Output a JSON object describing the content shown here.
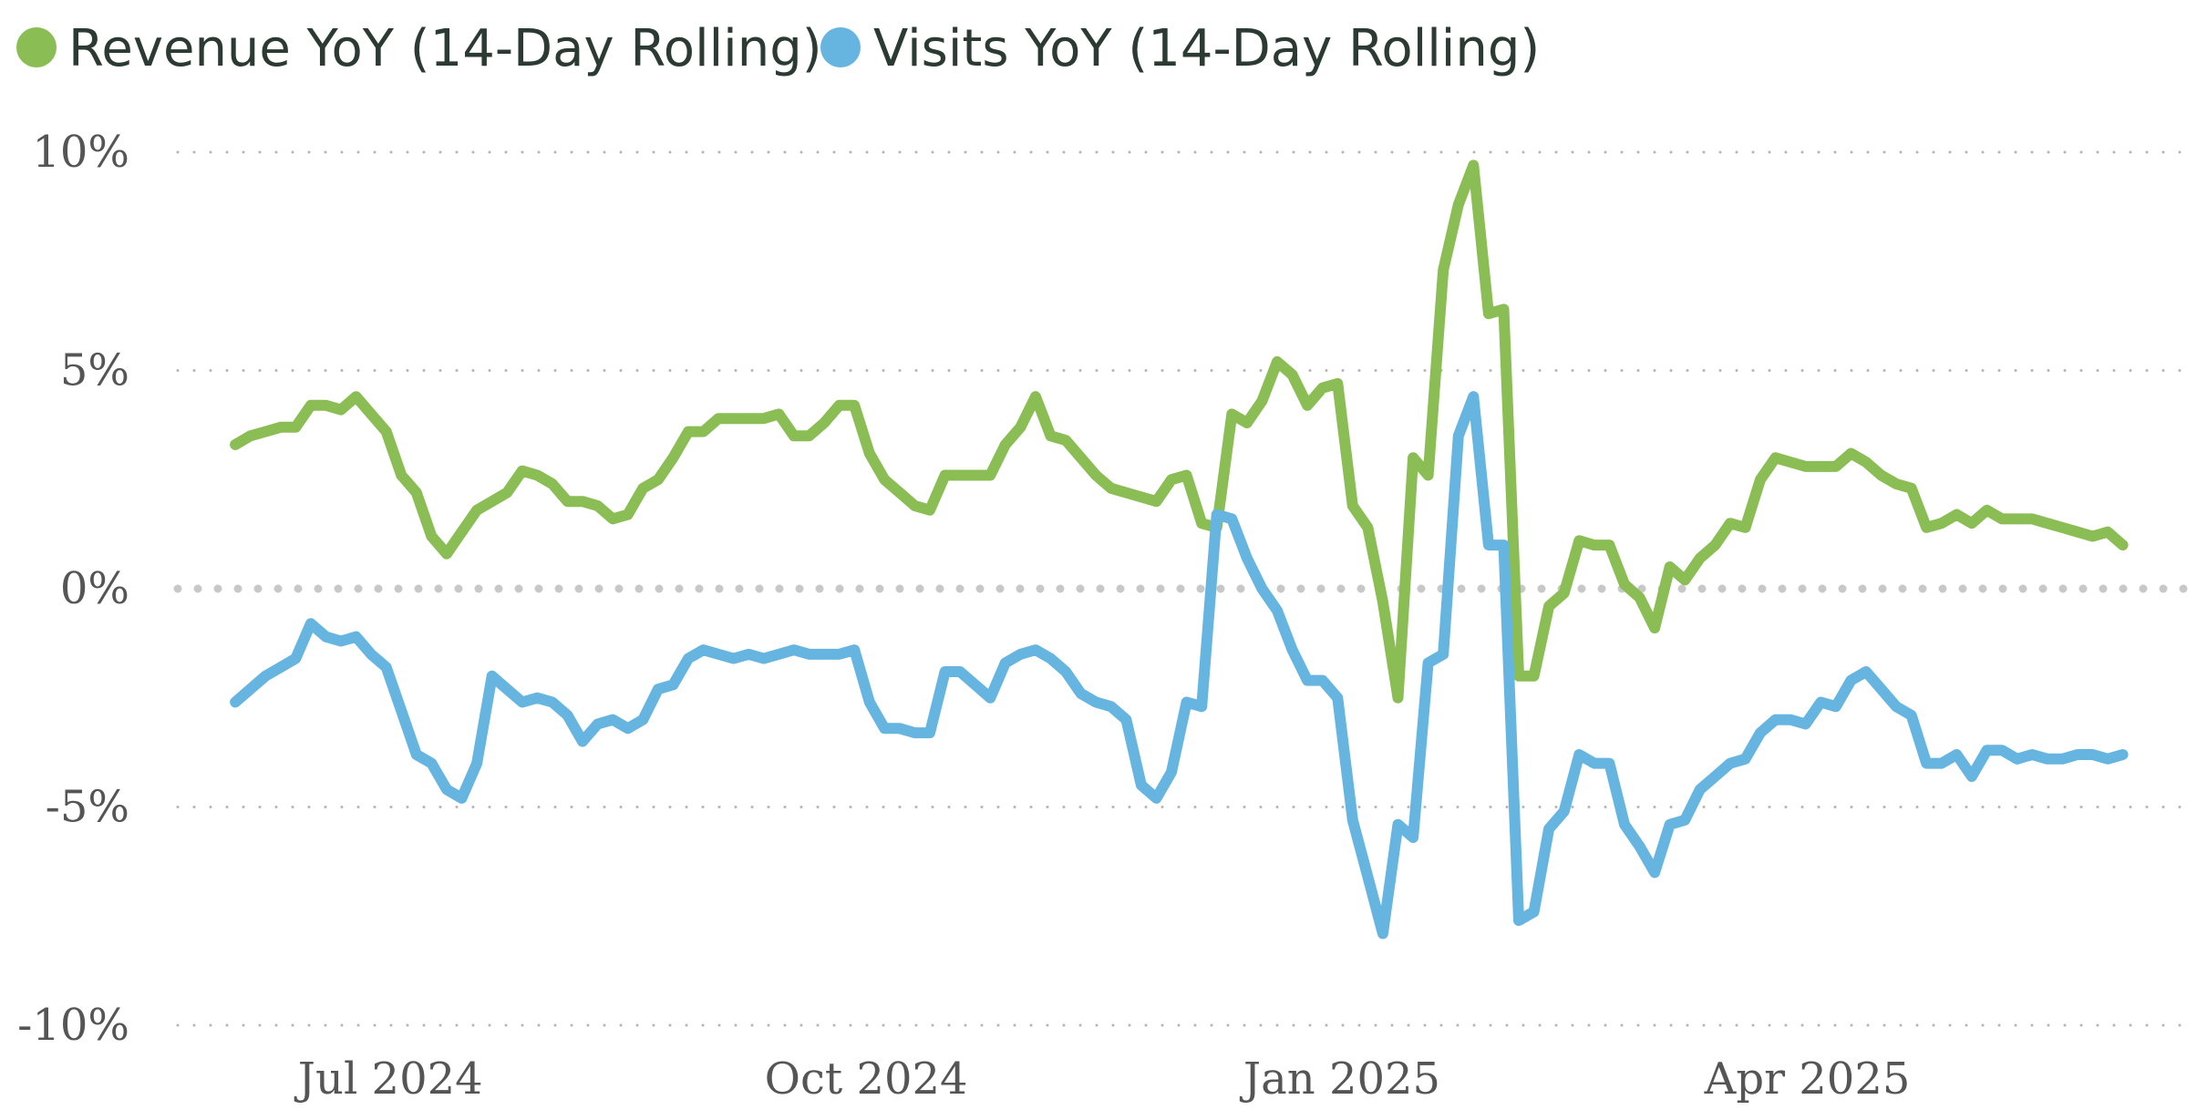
{
  "chart_data": {
    "type": "line",
    "title": "",
    "xlabel": "",
    "ylabel": "",
    "x_start": "2024-06-01",
    "x_end": "2025-06-01",
    "xlim": [
      "2024-05-20",
      "2025-06-15"
    ],
    "ylim": [
      -10,
      10
    ],
    "y_ticks": [
      10,
      5,
      0,
      -5,
      -10
    ],
    "y_tick_labels": [
      "10%",
      "5%",
      "0%",
      "-5%",
      "-10%"
    ],
    "x_ticks": [
      "2024-07-01",
      "2024-10-01",
      "2025-01-01",
      "2025-04-01"
    ],
    "x_tick_labels": [
      "Jul 2024",
      "Oct 2024",
      "Jan 2025",
      "Apr 2025"
    ],
    "grid": "horizontal-dotted",
    "legend": "top-left",
    "series": [
      {
        "name": "Revenue YoY (14-Day Rolling)",
        "color": "#8bbd55",
        "values": [
          3.3,
          3.5,
          3.6,
          3.7,
          3.7,
          4.2,
          4.2,
          4.1,
          4.4,
          4.0,
          3.6,
          2.6,
          2.2,
          1.2,
          0.8,
          1.3,
          1.8,
          2.0,
          2.2,
          2.7,
          2.6,
          2.4,
          2.0,
          2.0,
          1.9,
          1.6,
          1.7,
          2.3,
          2.5,
          3.0,
          3.6,
          3.6,
          3.9,
          3.9,
          3.9,
          3.9,
          4.0,
          3.5,
          3.5,
          3.8,
          4.2,
          4.2,
          3.1,
          2.5,
          2.2,
          1.9,
          1.8,
          2.6,
          2.6,
          2.6,
          2.6,
          3.3,
          3.7,
          4.4,
          3.5,
          3.4,
          3.0,
          2.6,
          2.3,
          2.2,
          2.1,
          2.0,
          2.5,
          2.6,
          1.5,
          1.4,
          4.0,
          3.8,
          4.3,
          5.2,
          4.9,
          4.2,
          4.6,
          4.7,
          1.9,
          1.4,
          -0.3,
          -2.5,
          3.0,
          2.6,
          7.3,
          8.8,
          9.7,
          6.3,
          6.4,
          -2.0,
          -2.0,
          -0.4,
          -0.1,
          1.1,
          1.0,
          1.0,
          0.1,
          -0.2,
          -0.9,
          0.5,
          0.2,
          0.7,
          1.0,
          1.5,
          1.4,
          2.5,
          3.0,
          2.9,
          2.8,
          2.8,
          2.8,
          3.1,
          2.9,
          2.6,
          2.4,
          2.3,
          1.4,
          1.5,
          1.7,
          1.5,
          1.8,
          1.6,
          1.6,
          1.6,
          1.5,
          1.4,
          1.3,
          1.2,
          1.3,
          1.0
        ]
      },
      {
        "name": "Visits YoY (14-Day Rolling)",
        "color": "#66b5e0",
        "values": [
          -2.6,
          -2.3,
          -2.0,
          -1.8,
          -1.6,
          -0.8,
          -1.1,
          -1.2,
          -1.1,
          -1.5,
          -1.8,
          -2.8,
          -3.8,
          -4.0,
          -4.6,
          -4.8,
          -4.0,
          -2.0,
          -2.3,
          -2.6,
          -2.5,
          -2.6,
          -2.9,
          -3.5,
          -3.1,
          -3.0,
          -3.2,
          -3.0,
          -2.3,
          -2.2,
          -1.6,
          -1.4,
          -1.5,
          -1.6,
          -1.5,
          -1.6,
          -1.5,
          -1.4,
          -1.5,
          -1.5,
          -1.5,
          -1.4,
          -2.6,
          -3.2,
          -3.2,
          -3.3,
          -3.3,
          -1.9,
          -1.9,
          -2.2,
          -2.5,
          -1.7,
          -1.5,
          -1.4,
          -1.6,
          -1.9,
          -2.4,
          -2.6,
          -2.7,
          -3.0,
          -4.5,
          -4.8,
          -4.2,
          -2.6,
          -2.7,
          1.7,
          1.6,
          0.7,
          0.0,
          -0.5,
          -1.4,
          -2.1,
          -2.1,
          -2.5,
          -5.3,
          -6.6,
          -7.9,
          -5.4,
          -5.7,
          -1.7,
          -1.5,
          3.5,
          4.4,
          1.0,
          1.0,
          -7.6,
          -7.4,
          -5.5,
          -5.1,
          -3.8,
          -4.0,
          -4.0,
          -5.4,
          -5.9,
          -6.5,
          -5.4,
          -5.3,
          -4.6,
          -4.3,
          -4.0,
          -3.9,
          -3.3,
          -3.0,
          -3.0,
          -3.1,
          -2.6,
          -2.7,
          -2.1,
          -1.9,
          -2.3,
          -2.7,
          -2.9,
          -4.0,
          -4.0,
          -3.8,
          -4.3,
          -3.7,
          -3.7,
          -3.9,
          -3.8,
          -3.9,
          -3.9,
          -3.8,
          -3.8,
          -3.9,
          -3.8
        ]
      }
    ]
  }
}
